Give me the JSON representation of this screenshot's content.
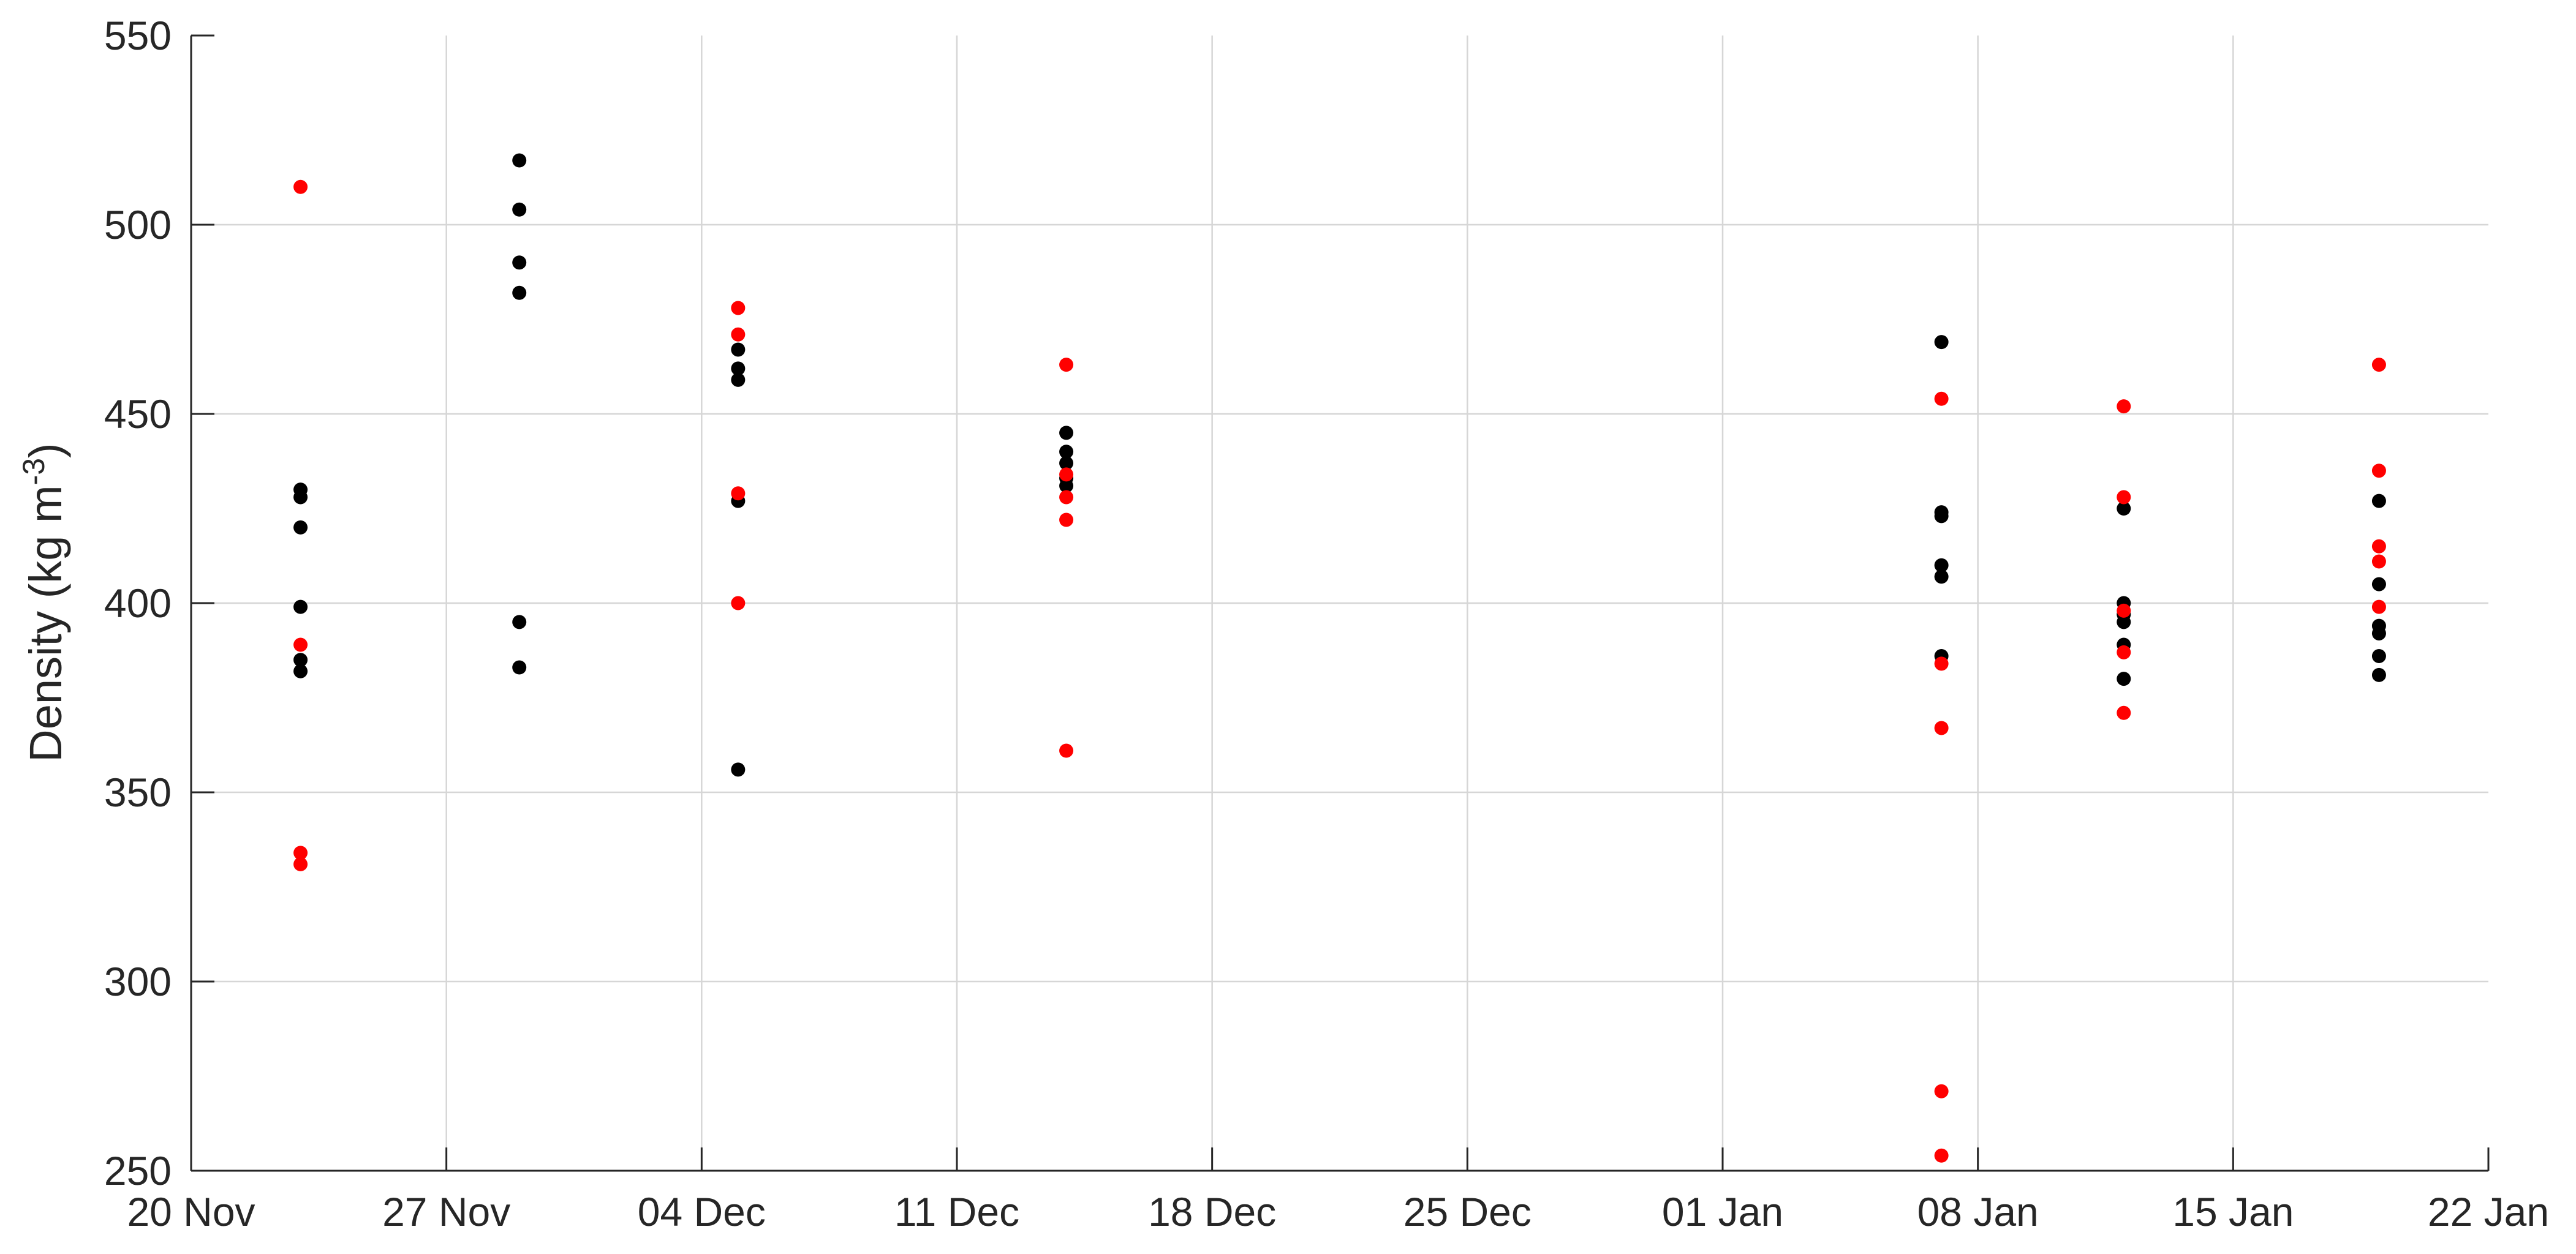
{
  "chart_data": {
    "type": "scatter",
    "title": "",
    "xlabel": "",
    "ylabel": "Density (kg m",
    "ylabel_superscript": "-3",
    "ylabel_suffix": ")",
    "x_axis_type": "date",
    "xlim": [
      "2017-11-20",
      "2018-01-22"
    ],
    "ylim": [
      250,
      550
    ],
    "x_ticks": [
      {
        "date": "2017-11-20",
        "label": "20 Nov"
      },
      {
        "date": "2017-11-27",
        "label": "27 Nov"
      },
      {
        "date": "2017-12-04",
        "label": "04 Dec"
      },
      {
        "date": "2017-12-11",
        "label": "11 Dec"
      },
      {
        "date": "2017-12-18",
        "label": "18 Dec"
      },
      {
        "date": "2017-12-25",
        "label": "25 Dec"
      },
      {
        "date": "2018-01-01",
        "label": "01 Jan"
      },
      {
        "date": "2018-01-08",
        "label": "08 Jan"
      },
      {
        "date": "2018-01-15",
        "label": "15 Jan"
      },
      {
        "date": "2018-01-22",
        "label": "22 Jan"
      }
    ],
    "y_ticks": [
      250,
      300,
      350,
      400,
      450,
      500,
      550
    ],
    "grid": true,
    "legend": "none",
    "series": [
      {
        "color": "#000000",
        "points": [
          {
            "x": "2017-11-23",
            "y": 430
          },
          {
            "x": "2017-11-23",
            "y": 428
          },
          {
            "x": "2017-11-23",
            "y": 420
          },
          {
            "x": "2017-11-23",
            "y": 399
          },
          {
            "x": "2017-11-23",
            "y": 385
          },
          {
            "x": "2017-11-23",
            "y": 382
          },
          {
            "x": "2017-11-29",
            "y": 517
          },
          {
            "x": "2017-11-29",
            "y": 504
          },
          {
            "x": "2017-11-29",
            "y": 490
          },
          {
            "x": "2017-11-29",
            "y": 482
          },
          {
            "x": "2017-11-29",
            "y": 395
          },
          {
            "x": "2017-11-29",
            "y": 383
          },
          {
            "x": "2017-12-05",
            "y": 467
          },
          {
            "x": "2017-12-05",
            "y": 462
          },
          {
            "x": "2017-12-05",
            "y": 459
          },
          {
            "x": "2017-12-05",
            "y": 427
          },
          {
            "x": "2017-12-05",
            "y": 356
          },
          {
            "x": "2017-12-14",
            "y": 445
          },
          {
            "x": "2017-12-14",
            "y": 440
          },
          {
            "x": "2017-12-14",
            "y": 437
          },
          {
            "x": "2017-12-14",
            "y": 433
          },
          {
            "x": "2017-12-14",
            "y": 431
          },
          {
            "x": "2018-01-07",
            "y": 469
          },
          {
            "x": "2018-01-07",
            "y": 424
          },
          {
            "x": "2018-01-07",
            "y": 423
          },
          {
            "x": "2018-01-07",
            "y": 410
          },
          {
            "x": "2018-01-07",
            "y": 407
          },
          {
            "x": "2018-01-07",
            "y": 386
          },
          {
            "x": "2018-01-12",
            "y": 425
          },
          {
            "x": "2018-01-12",
            "y": 400
          },
          {
            "x": "2018-01-12",
            "y": 397
          },
          {
            "x": "2018-01-12",
            "y": 395
          },
          {
            "x": "2018-01-12",
            "y": 389
          },
          {
            "x": "2018-01-12",
            "y": 380
          },
          {
            "x": "2018-01-19",
            "y": 427
          },
          {
            "x": "2018-01-19",
            "y": 405
          },
          {
            "x": "2018-01-19",
            "y": 394
          },
          {
            "x": "2018-01-19",
            "y": 392
          },
          {
            "x": "2018-01-19",
            "y": 386
          },
          {
            "x": "2018-01-19",
            "y": 381
          }
        ]
      },
      {
        "color": "#ff0000",
        "points": [
          {
            "x": "2017-11-23",
            "y": 510
          },
          {
            "x": "2017-11-23",
            "y": 389
          },
          {
            "x": "2017-11-23",
            "y": 334
          },
          {
            "x": "2017-11-23",
            "y": 331
          },
          {
            "x": "2017-12-05",
            "y": 478
          },
          {
            "x": "2017-12-05",
            "y": 471
          },
          {
            "x": "2017-12-05",
            "y": 429
          },
          {
            "x": "2017-12-05",
            "y": 400
          },
          {
            "x": "2017-12-14",
            "y": 463
          },
          {
            "x": "2017-12-14",
            "y": 434
          },
          {
            "x": "2017-12-14",
            "y": 428
          },
          {
            "x": "2017-12-14",
            "y": 422
          },
          {
            "x": "2017-12-14",
            "y": 361
          },
          {
            "x": "2018-01-07",
            "y": 454
          },
          {
            "x": "2018-01-07",
            "y": 384
          },
          {
            "x": "2018-01-07",
            "y": 367
          },
          {
            "x": "2018-01-07",
            "y": 271
          },
          {
            "x": "2018-01-07",
            "y": 254
          },
          {
            "x": "2018-01-12",
            "y": 452
          },
          {
            "x": "2018-01-12",
            "y": 428
          },
          {
            "x": "2018-01-12",
            "y": 398
          },
          {
            "x": "2018-01-12",
            "y": 387
          },
          {
            "x": "2018-01-12",
            "y": 371
          },
          {
            "x": "2018-01-19",
            "y": 463
          },
          {
            "x": "2018-01-19",
            "y": 435
          },
          {
            "x": "2018-01-19",
            "y": 415
          },
          {
            "x": "2018-01-19",
            "y": 411
          },
          {
            "x": "2018-01-19",
            "y": 399
          }
        ]
      }
    ]
  }
}
